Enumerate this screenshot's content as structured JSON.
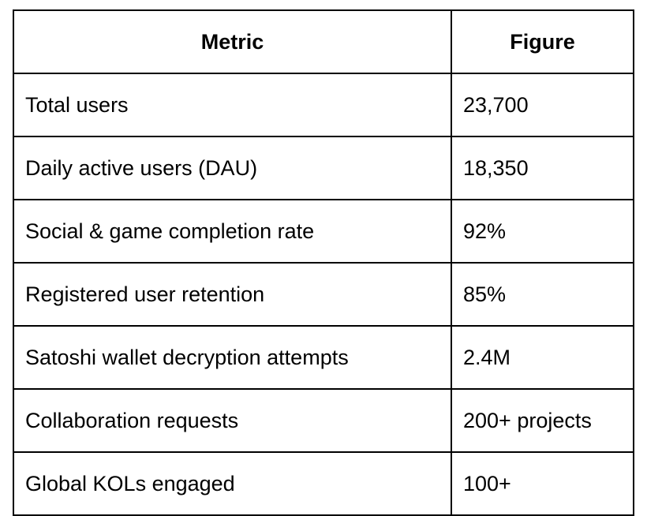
{
  "table": {
    "headers": [
      "Metric",
      "Figure"
    ],
    "rows": [
      [
        "Total users",
        "23,700"
      ],
      [
        "Daily active users (DAU)",
        "18,350"
      ],
      [
        "Social & game completion rate",
        "92%"
      ],
      [
        "Registered user retention",
        "85%"
      ],
      [
        "Satoshi wallet decryption attempts",
        "2.4M"
      ],
      [
        "Collaboration requests",
        "200+ projects"
      ],
      [
        "Global KOLs engaged",
        "100+"
      ]
    ]
  }
}
